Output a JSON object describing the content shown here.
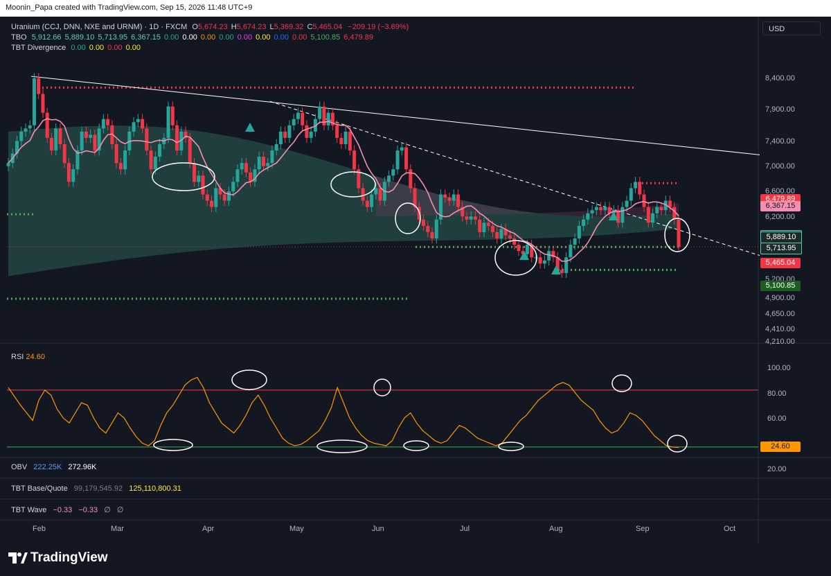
{
  "header": {
    "credit": "Moonin_Papa created with TradingView.com, Sep 15, 2026 11:48 UTC+9"
  },
  "legend": {
    "symbol": "Uranium (CCJ, DNN, NXE and URNM) · 1D · FXCM",
    "ohlc": [
      {
        "k": "O",
        "v": "5,674.23"
      },
      {
        "k": "H",
        "v": "5,674.23"
      },
      {
        "k": "L",
        "v": "5,369.32"
      },
      {
        "k": "C",
        "v": "5,465.04"
      }
    ],
    "change": "−209.19 (−3.69%)",
    "tbo_label": "TBO",
    "tbo_values": [
      {
        "v": "5,912.66",
        "c": "#5ad0b8"
      },
      {
        "v": "5,889.10",
        "c": "#5ad0b8"
      },
      {
        "v": "5,713.95",
        "c": "#5ad0b8"
      },
      {
        "v": "6,367.15",
        "c": "#5ad0b8"
      },
      {
        "v": "0.00",
        "c": "#26a69a"
      },
      {
        "v": "0.00",
        "c": "#ffffff"
      },
      {
        "v": "0.00",
        "c": "#ff9800"
      },
      {
        "v": "0.00",
        "c": "#26a69a"
      },
      {
        "v": "0.00",
        "c": "#e040fb"
      },
      {
        "v": "0.00",
        "c": "#ffeb3b"
      },
      {
        "v": "0.00",
        "c": "#2962ff"
      },
      {
        "v": "0.00",
        "c": "#f23645"
      },
      {
        "v": "5,100.85",
        "c": "#4caf50"
      },
      {
        "v": "6,479.89",
        "c": "#f23645"
      }
    ],
    "tbt_label": "TBT Divergence",
    "tbt_values": [
      {
        "v": "0.00",
        "c": "#26a69a"
      },
      {
        "v": "0.00",
        "c": "#ffeb3b"
      },
      {
        "v": "0.00",
        "c": "#f23645"
      },
      {
        "v": "0.00",
        "c": "#ffeb3b"
      }
    ]
  },
  "currency": "USD",
  "price_axis": {
    "ticks": [
      "8,400.00",
      "7,900.00",
      "7,400.00",
      "7,000.00",
      "6,600.00",
      "6,200.00",
      "5,800.00",
      "5,200.00",
      "4,900.00",
      "4,650.00",
      "4,410.00",
      "4,210.00"
    ],
    "tags": [
      {
        "text": "6,479.89",
        "bg": "#f23645",
        "fg": "#ffffff",
        "v": 6479.89
      },
      {
        "text": "6,367.15",
        "bg": "#f48fb1",
        "fg": "#131722",
        "v": 6367.15
      },
      {
        "text": "5,912.66",
        "bg": "#1e2a2a",
        "fg": "#ffffff",
        "v": 5912.66,
        "border": "#5ad0b8"
      },
      {
        "text": "5,889.10",
        "bg": "#1e2a2a",
        "fg": "#ffffff",
        "v": 5889.1,
        "border": "#5ad0b8"
      },
      {
        "text": "5,713.95",
        "bg": "#1e2a2a",
        "fg": "#ffffff",
        "v": 5713.95,
        "border": "#5ad0b8"
      },
      {
        "text": "5,465.04",
        "bg": "#f23645",
        "fg": "#ffffff",
        "v": 5465.04
      },
      {
        "text": "5,100.85",
        "bg": "#1b5e20",
        "fg": "#ffffff",
        "v": 5100.85
      }
    ]
  },
  "rsi": {
    "label": "RSI",
    "value": "24.60",
    "ticks": [
      "100.00",
      "80.00",
      "60.00",
      "40.00",
      "20.00"
    ],
    "upper": 70,
    "lower": 25
  },
  "obv": {
    "label": "OBV",
    "v1": "222.25K",
    "v2": "272.96K"
  },
  "tbt_base": {
    "label": "TBT Base/Quote",
    "v1": "99,179,545.92",
    "v2": "125,110,800.31"
  },
  "tbt_wave": {
    "label": "TBT Wave",
    "v1": "−0.33",
    "v2": "−0.33",
    "v3": "∅",
    "v4": "∅"
  },
  "months": [
    "Feb",
    "Mar",
    "Apr",
    "May",
    "Jun",
    "Jul",
    "Aug",
    "Sep",
    "Oct"
  ],
  "brand": "TradingView",
  "colors": {
    "up": "#26a69a",
    "down": "#f23645",
    "bg": "#131722",
    "rsi": "#ff9800"
  },
  "chart_data": {
    "type": "candlestick",
    "title": "Uranium (CCJ, DNN, NXE and URNM) · 1D · FXCM",
    "ylim": [
      4100,
      8600
    ],
    "close": [
      6800,
      6950,
      7150,
      7300,
      7350,
      7400,
      8150,
      7900,
      7600,
      7200,
      7000,
      7350,
      7100,
      6800,
      6500,
      6700,
      7000,
      7300,
      7200,
      7250,
      7000,
      7350,
      7500,
      7400,
      7100,
      6800,
      6700,
      7000,
      7300,
      7450,
      7500,
      7350,
      7000,
      6700,
      6900,
      7100,
      7200,
      7700,
      7400,
      7000,
      7300,
      7200,
      6800,
      6500,
      6600,
      6300,
      6200,
      6100,
      6400,
      6300,
      6200,
      6350,
      6500,
      6700,
      6800,
      6650,
      6500,
      6700,
      6900,
      6750,
      6800,
      7000,
      7100,
      7300,
      7200,
      7400,
      7500,
      7600,
      7400,
      7200,
      7300,
      7500,
      7700,
      7400,
      7600,
      7400,
      7200,
      7100,
      7300,
      7000,
      6700,
      6400,
      6200,
      6100,
      6300,
      6400,
      6200,
      6500,
      6600,
      6700,
      7000,
      7050,
      6700,
      6400,
      6100,
      5900,
      5800,
      5700,
      5600,
      5900,
      6300,
      6250,
      6200,
      6300,
      6100,
      5950,
      5900,
      5950,
      5900,
      5700,
      5850,
      5800,
      5700,
      5600,
      5750,
      5650,
      5600,
      5500,
      5400,
      5350,
      5500,
      5300,
      5300,
      5200,
      5250,
      5400,
      5300,
      5100,
      5050,
      5300,
      5500,
      5600,
      5800,
      5900,
      6000,
      6050,
      6100,
      6050,
      6100,
      6000,
      6050,
      5850,
      6100,
      6200,
      6400,
      6500,
      6300,
      6100,
      5850,
      6000,
      6100,
      6050,
      6200,
      6100,
      5900,
      5465
    ]
  }
}
